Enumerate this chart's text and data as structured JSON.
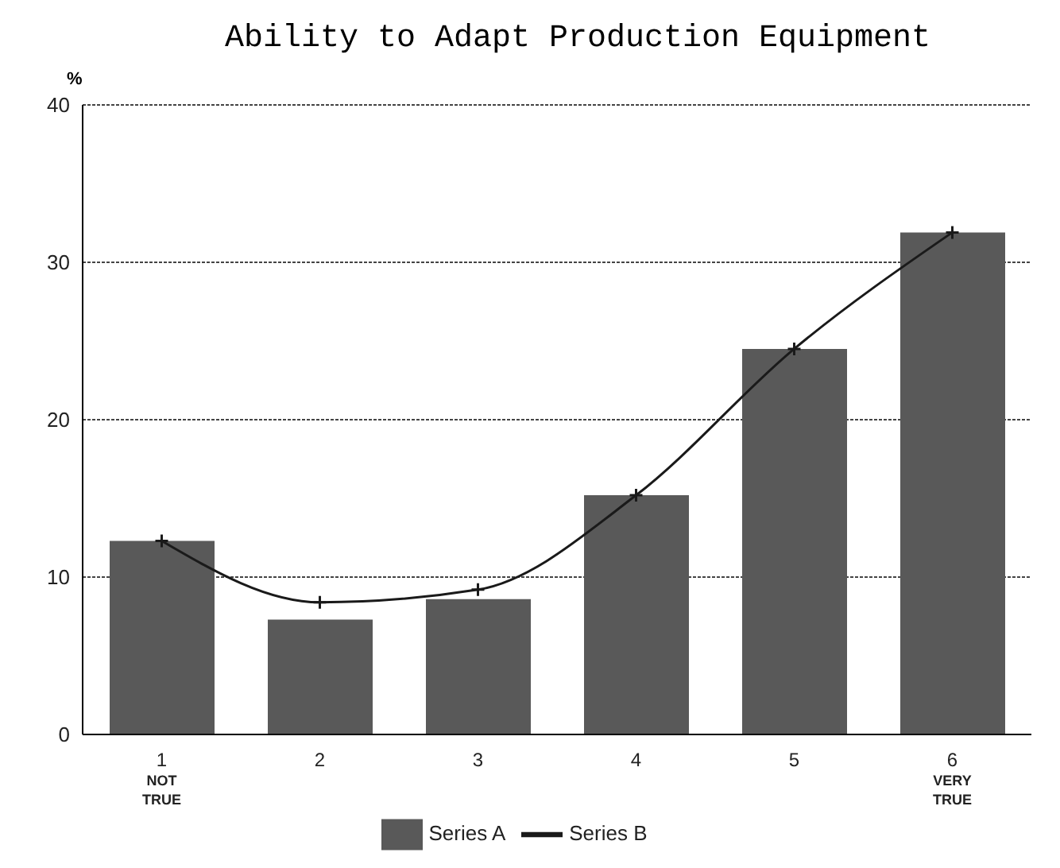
{
  "chart_data": {
    "type": "bar",
    "title": "Ability to Adapt Production Equipment",
    "ylabel": "%",
    "categories": [
      "1\nNOT\nTRUE",
      "2",
      "3",
      "4",
      "5",
      "6\nVERY\nTRUE"
    ],
    "series": [
      {
        "name": "Series A",
        "color": "#595959",
        "values": [
          12.3,
          7.3,
          8.6,
          15.2,
          24.5,
          31.9
        ]
      },
      {
        "name": "Series B",
        "type": "line",
        "color": "#1a1a1a",
        "marker": "cross",
        "values": [
          12.3,
          8.4,
          9.2,
          15.2,
          24.5,
          31.9
        ]
      }
    ],
    "ylim": [
      0,
      40
    ],
    "yticks": [
      0,
      10,
      20,
      30,
      40
    ],
    "grid": "y",
    "legend": "bottom"
  }
}
